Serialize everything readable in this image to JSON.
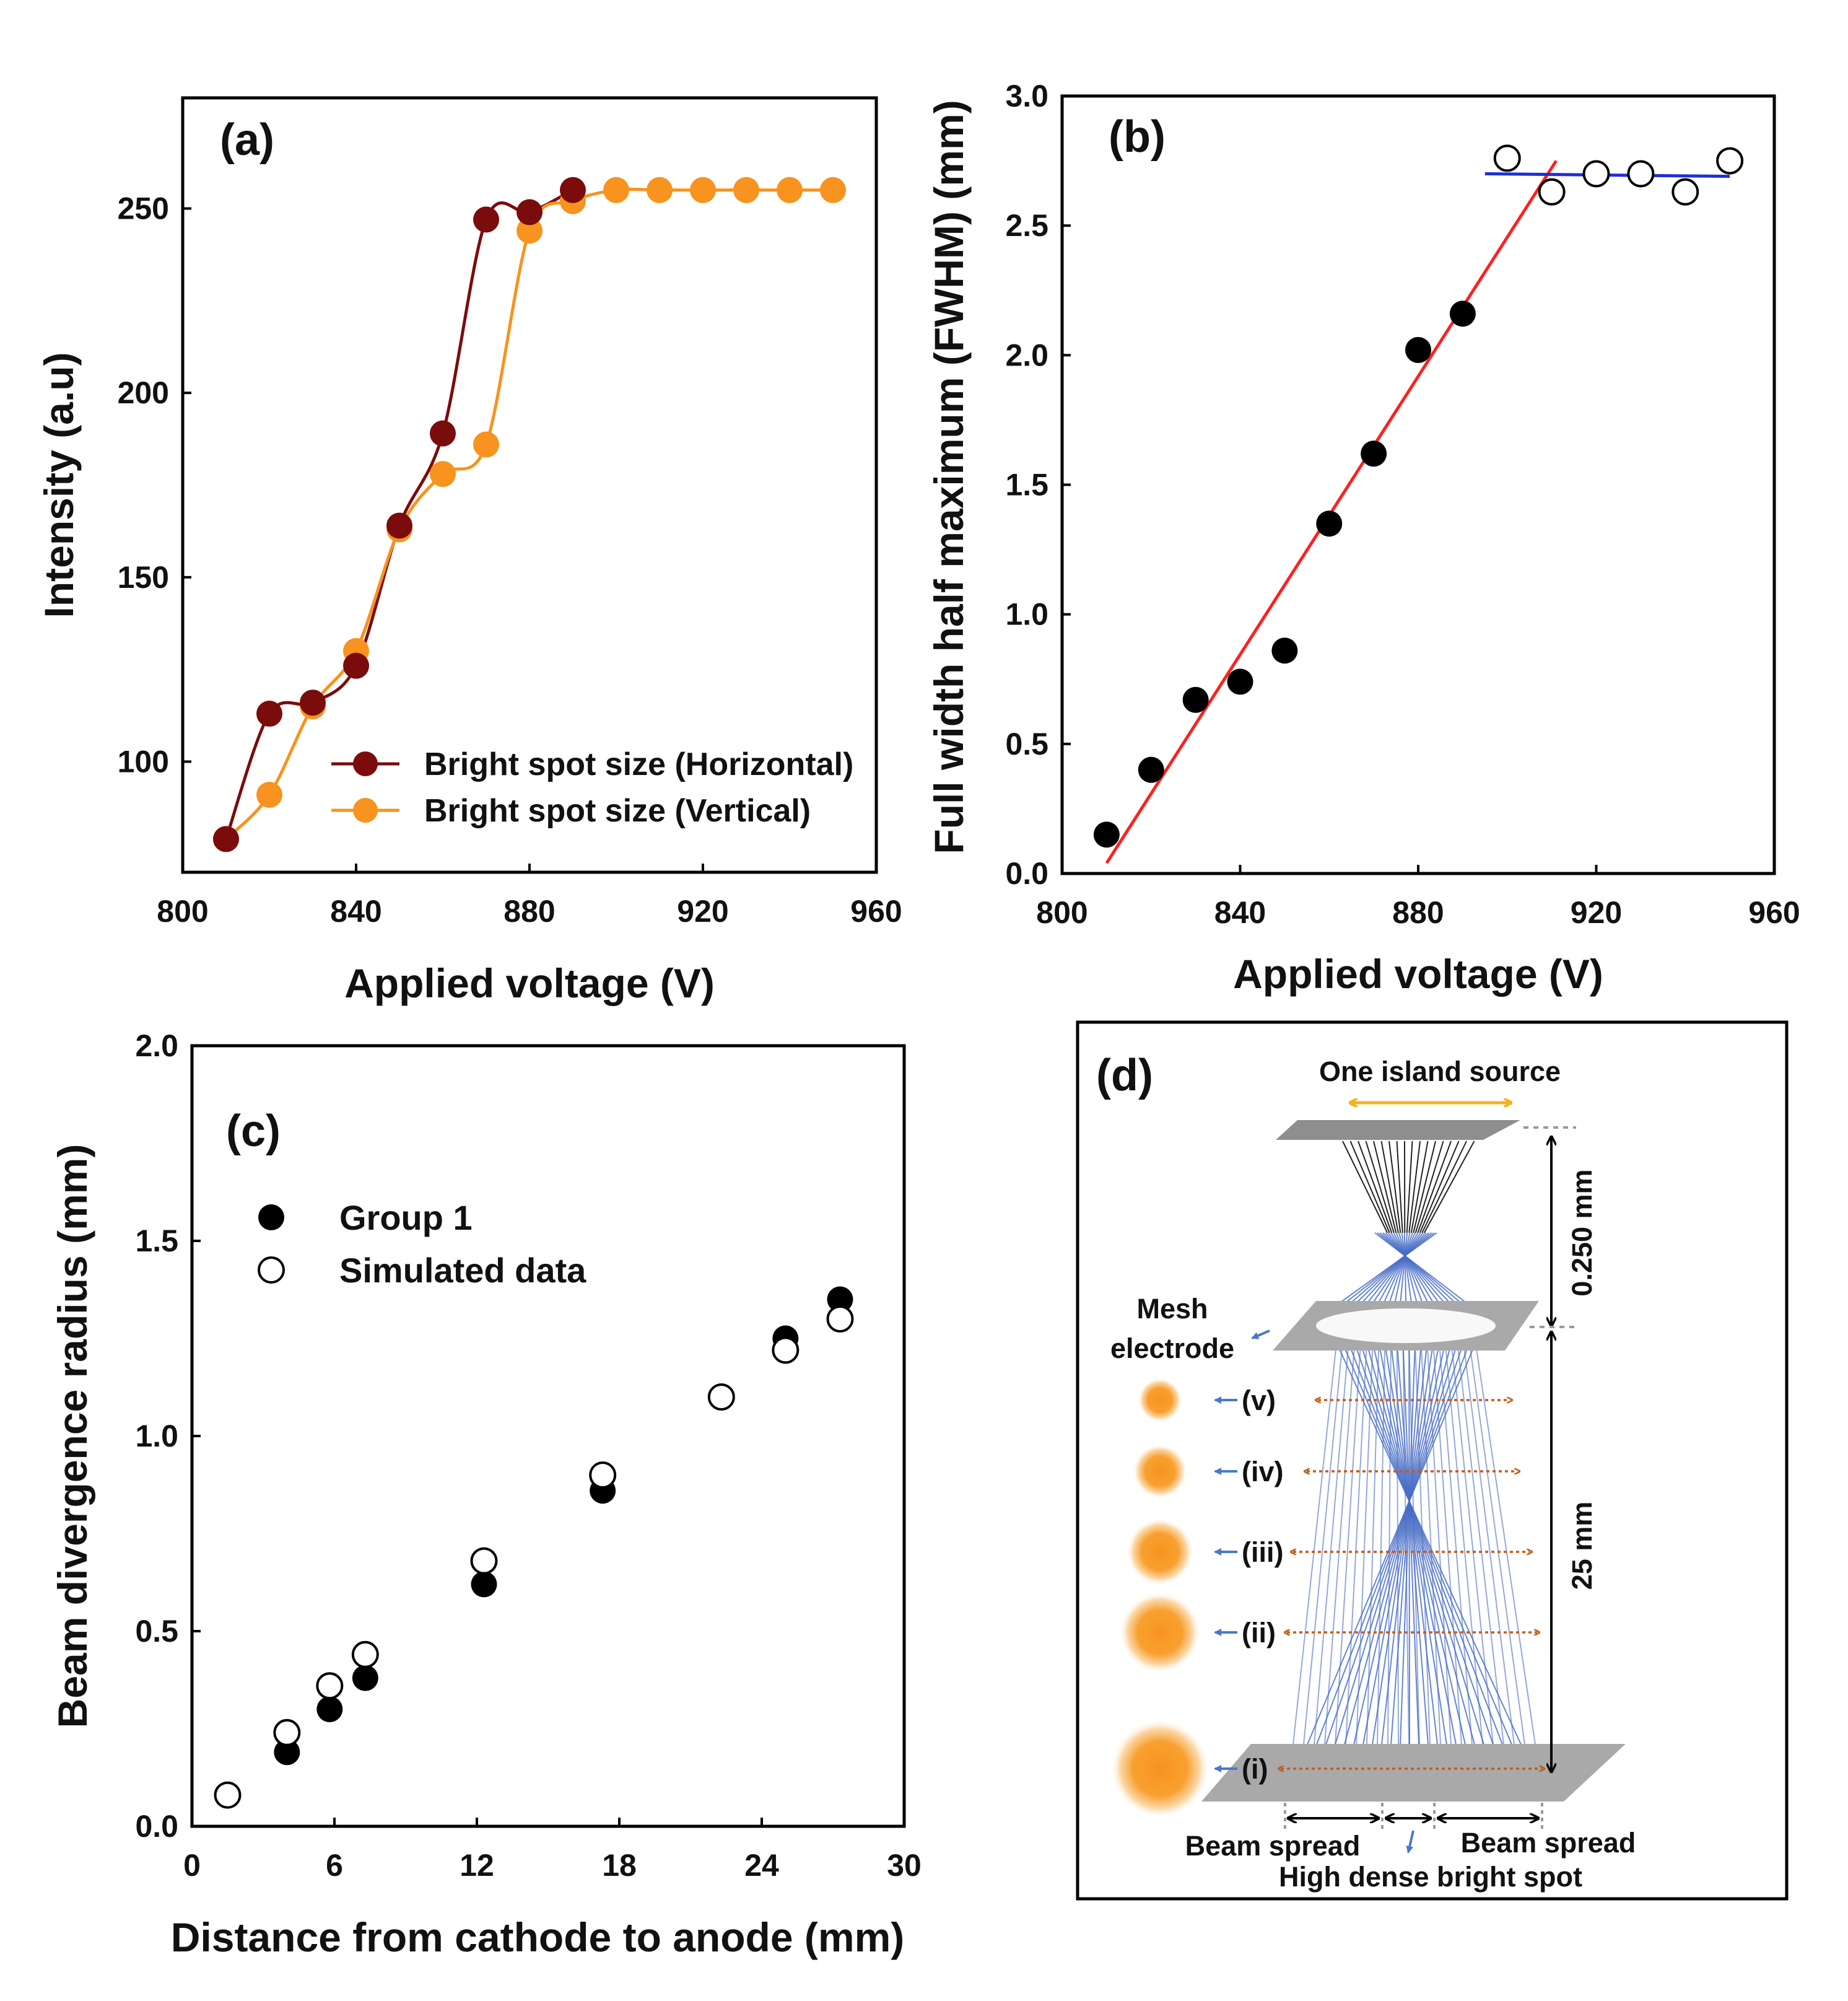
{
  "colors": {
    "horizontal": "#7b0c0c",
    "vertical": "#f7931e",
    "fit_red": "#ff2020",
    "fit_blue": "#1f2fd6",
    "beam": "#4a6fc7",
    "arrow_orange": "#c85a10",
    "source_arrow": "#f5b21a",
    "plate": "#a9a9a9",
    "blue_pointer": "#4a79c9"
  },
  "chart_data": [
    {
      "panel": "(a)",
      "type": "line",
      "xlabel": "Applied voltage (V)",
      "ylabel": "Intensity (a.u)",
      "xlim": [
        800,
        960
      ],
      "ylim": [
        70,
        280
      ],
      "xticks": [
        800,
        840,
        880,
        920,
        960
      ],
      "yticks": [
        100,
        150,
        200,
        250
      ],
      "legend_position": "bottom-right",
      "series": [
        {
          "name": "Bright spot size (Horizontal)",
          "x": [
            810,
            820,
            830,
            840,
            850,
            860,
            870,
            880,
            890
          ],
          "y": [
            79,
            113,
            116,
            126,
            164,
            189,
            247,
            249,
            255
          ]
        },
        {
          "name": "Bright spot size (Vertical)",
          "x": [
            810,
            820,
            830,
            840,
            850,
            860,
            870,
            880,
            890,
            900,
            910,
            920,
            930,
            940,
            950
          ],
          "y": [
            79,
            91,
            115,
            130,
            163,
            178,
            186,
            244,
            252,
            255,
            255,
            255,
            255,
            255,
            255
          ]
        }
      ]
    },
    {
      "panel": "(b)",
      "type": "scatter",
      "xlabel": "Applied voltage (V)",
      "ylabel": "Full width half maximum (FWHM) (mm)",
      "xlim": [
        800,
        960
      ],
      "ylim": [
        0.0,
        3.0
      ],
      "xticks": [
        800,
        840,
        880,
        920,
        960
      ],
      "yticks": [
        "0.0",
        "0.5",
        "1.0",
        "1.5",
        "2.0",
        "2.5",
        "3.0"
      ],
      "series": [
        {
          "name": "measured (filled)",
          "x": [
            810,
            820,
            830,
            840,
            850,
            860,
            870,
            880,
            890
          ],
          "y": [
            0.15,
            0.4,
            0.67,
            0.74,
            0.86,
            1.35,
            1.62,
            2.02,
            2.16
          ]
        },
        {
          "name": "measured (open)",
          "x": [
            900,
            910,
            920,
            930,
            940,
            950
          ],
          "y": [
            2.76,
            2.63,
            2.7,
            2.7,
            2.63,
            2.75
          ]
        }
      ],
      "fits": [
        {
          "name": "linear fit (red)",
          "x": [
            810,
            911
          ],
          "y": [
            0.04,
            2.75
          ]
        },
        {
          "name": "plateau (blue)",
          "x": [
            895,
            950
          ],
          "y": [
            2.7,
            2.69
          ]
        }
      ]
    },
    {
      "panel": "(c)",
      "type": "scatter",
      "xlabel": "Distance from cathode to anode (mm)",
      "ylabel": "Beam divergence radius (mm)",
      "xlim": [
        0,
        30
      ],
      "ylim": [
        0.0,
        2.0
      ],
      "xticks": [
        0,
        6,
        12,
        18,
        24,
        30
      ],
      "yticks": [
        "0.0",
        "0.5",
        "1.0",
        "1.5",
        "2.0"
      ],
      "legend_position": "top-left",
      "series": [
        {
          "name": "Group 1",
          "x": [
            4.0,
            5.8,
            7.3,
            12.3,
            17.3,
            25.0,
            27.3
          ],
          "y": [
            0.19,
            0.3,
            0.38,
            0.62,
            0.86,
            1.25,
            1.35
          ]
        },
        {
          "name": "Simulated data",
          "x": [
            1.5,
            4.0,
            5.8,
            7.3,
            12.3,
            17.3,
            22.3,
            25.0,
            27.3
          ],
          "y": [
            0.08,
            0.24,
            0.36,
            0.44,
            0.68,
            0.9,
            1.1,
            1.22,
            1.3
          ]
        }
      ]
    }
  ],
  "diagram_d": {
    "panel_label": "(d)",
    "source_label": "One island source",
    "gap_label_top": "0.250 mm",
    "gap_label_main": "25 mm",
    "mesh_label_1": "Mesh",
    "mesh_label_2": "electrode",
    "positions": [
      "(v)",
      "(iv)",
      "(iii)",
      "(ii)",
      "(i)"
    ],
    "spot_scale": [
      0.45,
      0.55,
      0.68,
      0.82,
      1.0
    ],
    "beam_spread_left": "Beam spread",
    "beam_spread_right": "Beam spread",
    "bottom_label": "High dense bright spot"
  }
}
